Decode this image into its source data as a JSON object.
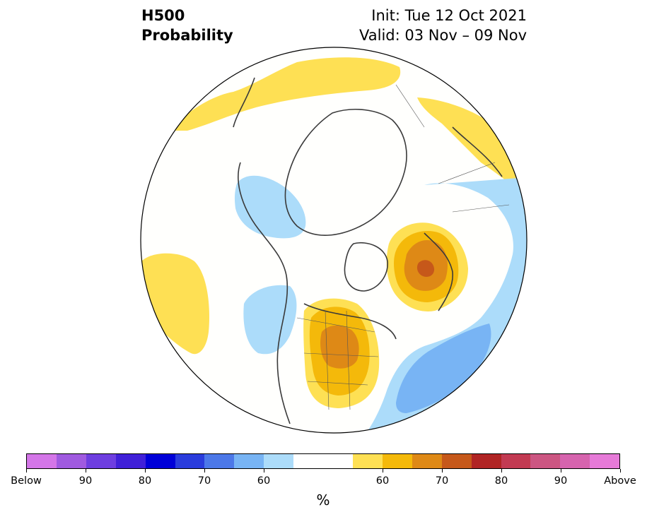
{
  "title": {
    "left_line1": "H500",
    "left_line2": "Probability",
    "right_line1": "Init: Tue 12 Oct 2021",
    "right_line2": "Valid: 03 Nov – 09 Nov"
  },
  "colorbar": {
    "colors": [
      "#d476e8",
      "#a05ae0",
      "#6e3ee0",
      "#4020d8",
      "#0000d8",
      "#2a3cdc",
      "#4c78e8",
      "#78b4f4",
      "#acdcfa",
      "#ffffff",
      "#ffffff",
      "#fee054",
      "#f4b90a",
      "#de8916",
      "#c6581a",
      "#b02424",
      "#c23a52",
      "#cc5682",
      "#d664ae",
      "#e67ad8"
    ],
    "tick_labels": [
      "Below",
      "90",
      "80",
      "70",
      "60",
      "60",
      "70",
      "80",
      "90",
      "Above"
    ],
    "unit": "%"
  },
  "map": {
    "projection": "north-polar-stereographic",
    "anomaly_regions": [
      {
        "category": "above",
        "level": "50-60"
      },
      {
        "category": "above",
        "level": "60-70"
      },
      {
        "category": "above",
        "level": "70-80"
      },
      {
        "category": "below",
        "level": "50-60"
      },
      {
        "category": "below",
        "level": "60-70"
      }
    ]
  }
}
